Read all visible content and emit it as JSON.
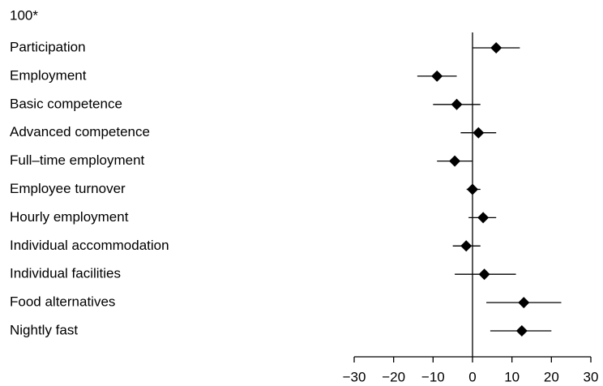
{
  "chart_data": {
    "type": "forest",
    "header": "100*",
    "categories": [
      "Participation",
      "Employment",
      "Basic competence",
      "Advanced competence",
      "Full–time employment",
      "Employee turnover",
      "Hourly employment",
      "Individual accommodation",
      "Individual facilities",
      "Food alternatives",
      "Nightly fast"
    ],
    "values": [
      6,
      -9,
      -4,
      1.5,
      -4.5,
      0,
      2.7,
      -1.6,
      3,
      13,
      12.5
    ],
    "lower": [
      0,
      -14,
      -10,
      -3,
      -9,
      -1.5,
      -1,
      -5,
      -4.5,
      3.5,
      4.5
    ],
    "upper": [
      12,
      -4,
      2,
      6,
      0,
      2,
      6,
      2,
      11,
      22.5,
      20
    ],
    "color": "#000000",
    "xlim": [
      -30,
      30
    ],
    "xticks": [
      {
        "value": -30,
        "label": "−30"
      },
      {
        "value": -20,
        "label": "−20"
      },
      {
        "value": -10,
        "label": "−10"
      },
      0,
      10,
      20,
      30
    ]
  }
}
